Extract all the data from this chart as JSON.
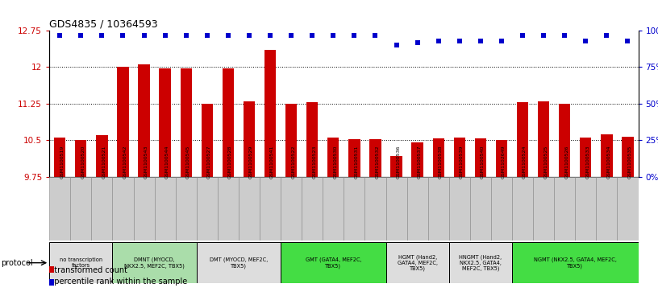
{
  "title": "GDS4835 / 10364593",
  "samples": [
    "GSM1100519",
    "GSM1100520",
    "GSM1100521",
    "GSM1100542",
    "GSM1100543",
    "GSM1100544",
    "GSM1100545",
    "GSM1100527",
    "GSM1100528",
    "GSM1100529",
    "GSM1100541",
    "GSM1100522",
    "GSM1100523",
    "GSM1100530",
    "GSM1100531",
    "GSM1100532",
    "GSM1100536",
    "GSM1100537",
    "GSM1100538",
    "GSM1100539",
    "GSM1100540",
    "GSM1102649",
    "GSM1100524",
    "GSM1100525",
    "GSM1100526",
    "GSM1100533",
    "GSM1100534",
    "GSM1100535"
  ],
  "bar_values": [
    10.55,
    10.5,
    10.6,
    12.0,
    12.05,
    11.98,
    11.98,
    11.25,
    11.98,
    11.3,
    12.35,
    11.25,
    11.28,
    10.55,
    10.52,
    10.52,
    10.18,
    10.45,
    10.53,
    10.55,
    10.53,
    10.5,
    11.28,
    11.3,
    11.25,
    10.55,
    10.62,
    10.57
  ],
  "percentile_values": [
    97,
    97,
    97,
    97,
    97,
    97,
    97,
    97,
    97,
    97,
    97,
    97,
    97,
    97,
    97,
    97,
    90,
    92,
    93,
    93,
    93,
    93,
    97,
    97,
    97,
    93,
    97,
    93
  ],
  "ylim_left": [
    9.75,
    12.75
  ],
  "ylim_right": [
    0,
    100
  ],
  "yticks_left": [
    9.75,
    10.5,
    11.25,
    12.0,
    12.75
  ],
  "yticks_right": [
    0,
    25,
    50,
    75,
    100
  ],
  "ytick_labels_left": [
    "9.75",
    "10.5",
    "11.25",
    "12",
    "12.75"
  ],
  "ytick_labels_right": [
    "0%",
    "25%",
    "50%",
    "75%",
    "100%"
  ],
  "bar_color": "#CC0000",
  "dot_color": "#0000CC",
  "protocol_groups": [
    {
      "label": "no transcription\nfactors",
      "start": 0,
      "end": 3,
      "color": "#DDDDDD"
    },
    {
      "label": "DMNT (MYOCD,\nNKX2.5, MEF2C, TBX5)",
      "start": 3,
      "end": 7,
      "color": "#AADDAA"
    },
    {
      "label": "DMT (MYOCD, MEF2C,\nTBX5)",
      "start": 7,
      "end": 11,
      "color": "#DDDDDD"
    },
    {
      "label": "GMT (GATA4, MEF2C,\nTBX5)",
      "start": 11,
      "end": 16,
      "color": "#44DD44"
    },
    {
      "label": "HGMT (Hand2,\nGATA4, MEF2C,\nTBX5)",
      "start": 16,
      "end": 19,
      "color": "#DDDDDD"
    },
    {
      "label": "HNGMT (Hand2,\nNKX2.5, GATA4,\nMEF2C, TBX5)",
      "start": 19,
      "end": 22,
      "color": "#DDDDDD"
    },
    {
      "label": "NGMT (NKX2.5, GATA4, MEF2C,\nTBX5)",
      "start": 22,
      "end": 28,
      "color": "#44DD44"
    }
  ],
  "legend_items": [
    {
      "label": "transformed count",
      "color": "#CC0000"
    },
    {
      "label": "percentile rank within the sample",
      "color": "#0000CC"
    }
  ],
  "protocol_label": "protocol",
  "bg_color": "#FFFFFF",
  "sample_box_color": "#CCCCCC",
  "sample_box_edge": "#888888"
}
